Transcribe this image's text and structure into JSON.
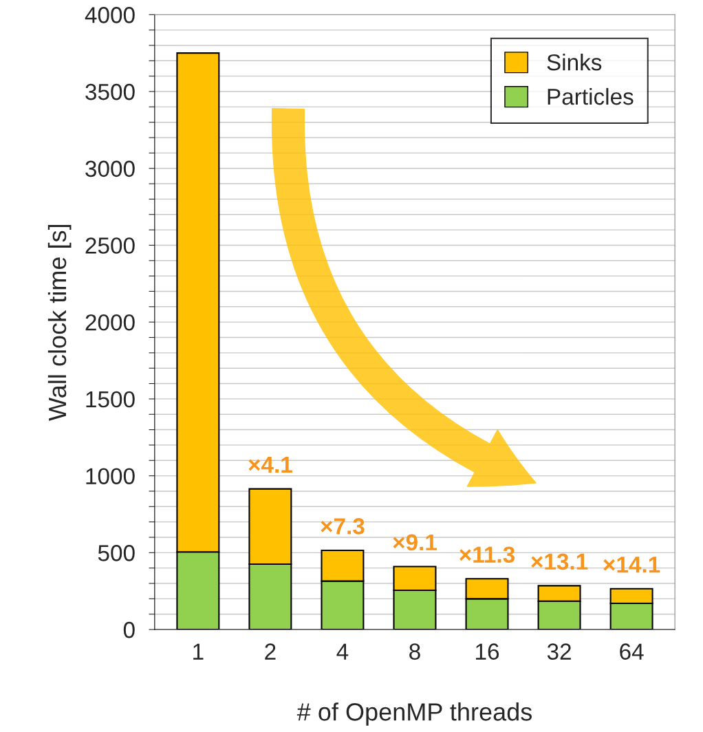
{
  "chart_data": {
    "type": "bar",
    "stacked": true,
    "xlabel": "# of OpenMP threads",
    "ylabel": "Wall clock time [s]",
    "categories": [
      "1",
      "2",
      "4",
      "8",
      "16",
      "32",
      "64"
    ],
    "series": [
      {
        "name": "Particles",
        "color": "#92d050",
        "values": [
          505,
          425,
          315,
          255,
          200,
          185,
          170
        ]
      },
      {
        "name": "Sinks",
        "color": "#ffc000",
        "values": [
          3245,
          490,
          200,
          155,
          130,
          100,
          95
        ]
      }
    ],
    "ylim": [
      0,
      4000
    ],
    "yticks": [
      0,
      {
        "value": 100,
        "label": null
      },
      {
        "value": 200,
        "label": null
      },
      {
        "value": 300,
        "label": null
      },
      {
        "value": 400,
        "label": null
      },
      500,
      {
        "value": 600,
        "label": null
      },
      {
        "value": 700,
        "label": null
      },
      {
        "value": 800,
        "label": null
      },
      {
        "value": 900,
        "label": null
      },
      1000,
      {
        "value": 1100,
        "label": null
      },
      {
        "value": 1200,
        "label": null
      },
      {
        "value": 1300,
        "label": null
      },
      {
        "value": 1400,
        "label": null
      },
      1500,
      {
        "value": 1600,
        "label": null
      },
      {
        "value": 1700,
        "label": null
      },
      {
        "value": 1800,
        "label": null
      },
      {
        "value": 1900,
        "label": null
      },
      2000,
      {
        "value": 2100,
        "label": null
      },
      {
        "value": 2200,
        "label": null
      },
      {
        "value": 2300,
        "label": null
      },
      {
        "value": 2400,
        "label": null
      },
      2500,
      {
        "value": 2600,
        "label": null
      },
      {
        "value": 2700,
        "label": null
      },
      {
        "value": 2800,
        "label": null
      },
      {
        "value": 2900,
        "label": null
      },
      3000,
      {
        "value": 3100,
        "label": null
      },
      {
        "value": 3200,
        "label": null
      },
      {
        "value": 3300,
        "label": null
      },
      {
        "value": 3400,
        "label": null
      },
      3500,
      {
        "value": 3600,
        "label": null
      },
      {
        "value": 3700,
        "label": null
      },
      {
        "value": 3800,
        "label": null
      },
      {
        "value": 3900,
        "label": null
      },
      4000
    ],
    "grid": "y",
    "legend": "top right",
    "annotations": [
      {
        "text": "×4.1",
        "x": "2",
        "y": 915
      },
      {
        "text": "×7.3",
        "x": "4",
        "y": 515
      },
      {
        "text": "×9.1",
        "x": "8",
        "y": 410
      },
      {
        "text": "×11.3",
        "x": "16",
        "y": 330
      },
      {
        "text": "×13.1",
        "x": "32",
        "y": 285
      },
      {
        "text": "×14.1",
        "x": "64",
        "y": 265
      }
    ]
  }
}
